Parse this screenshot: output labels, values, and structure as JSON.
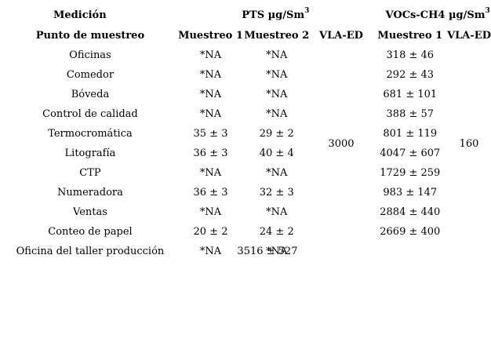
{
  "header": {
    "measurement_label": "Medición",
    "pts_group": "PTS µg/Sm",
    "pts_exponent": "3",
    "vocs_group": "VOCs-CH4 µg/Sm",
    "vocs_exponent": "3",
    "point_label": "Punto de muestreo",
    "sample1": "Muestreo 1",
    "sample2": "Muestreo 2",
    "vla_ed_pts": "VLA-ED",
    "vocs_sample1": "Muestreo 1",
    "vla_ed_vocs": "VLA-ED"
  },
  "rows": [
    {
      "point": "Oficinas",
      "pts1": "*NA",
      "pts2": "*NA",
      "voc1": "318 ± 46"
    },
    {
      "point": "Comedor",
      "pts1": "*NA",
      "pts2": "*NA",
      "voc1": "292 ± 43"
    },
    {
      "point": "Bóveda",
      "pts1": "*NA",
      "pts2": "*NA",
      "voc1": "681 ± 101"
    },
    {
      "point": "Control de calidad",
      "pts1": "*NA",
      "pts2": "*NA",
      "voc1": "388 ± 57"
    },
    {
      "point": "Termocromática",
      "pts1": "35 ± 3",
      "pts2": "29 ± 2",
      "voc1": "801 ± 119"
    },
    {
      "point": "Litografía",
      "pts1": "36 ± 3",
      "pts2": "40 ± 4",
      "voc1": "4047 ± 607"
    },
    {
      "point": "CTP",
      "pts1": "*NA",
      "pts2": "*NA",
      "voc1": "1729 ± 259"
    },
    {
      "point": "Numeradora",
      "pts1": "36 ± 3",
      "pts2": "32 ± 3",
      "voc1": "983 ± 147"
    },
    {
      "point": "Ventas",
      "pts1": "*NA",
      "pts2": "*NA",
      "voc1": "2884 ± 440"
    },
    {
      "point": "Conteo de papel",
      "pts1": "20 ± 2",
      "pts2": "24 ± 2",
      "voc1": "2669 ± 400"
    },
    {
      "point": "Oficina del taller producción",
      "pts1": "*NA",
      "pts2": "*NA",
      "voc1": "3516 ± 527"
    }
  ],
  "limits": {
    "pts_vla_ed": "3000",
    "vocs_vla_ed": "160"
  }
}
